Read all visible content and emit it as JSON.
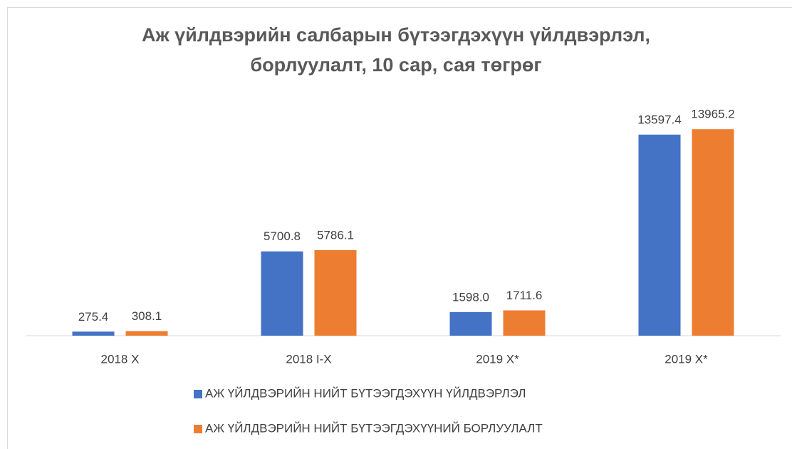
{
  "chart_data": {
    "type": "bar",
    "title": "Аж үйлдвэрийн салбарын бүтээгдэхүүн үйлдвэрлэл, борлуулалт, 10 сар, сая төгрөг",
    "categories": [
      "2018 X",
      "2018 I-X",
      "2019 X*",
      "2019 X*"
    ],
    "series": [
      {
        "name": "АЖ ҮЙЛДВЭРИЙН НИЙТ БҮТЭЭГДЭХҮҮН ҮЙЛДВЭРЛЭЛ",
        "color": "#4472c4",
        "values": [
          275.4,
          5700.8,
          1598.0,
          13597.4
        ],
        "value_labels": [
          "275.4",
          "5700.8",
          "1598.0",
          "13597.4"
        ]
      },
      {
        "name": "АЖ ҮЙЛДВЭРИЙН НИЙТ БҮТЭЭГДЭХҮҮНИЙ БОРЛУУЛАЛТ",
        "color": "#ed7d31",
        "values": [
          308.1,
          5786.1,
          1711.6,
          13965.2
        ],
        "value_labels": [
          "308.1",
          "5786.1",
          "1711.6",
          "13965.2"
        ]
      }
    ],
    "ylim": [
      0,
      16000
    ]
  }
}
